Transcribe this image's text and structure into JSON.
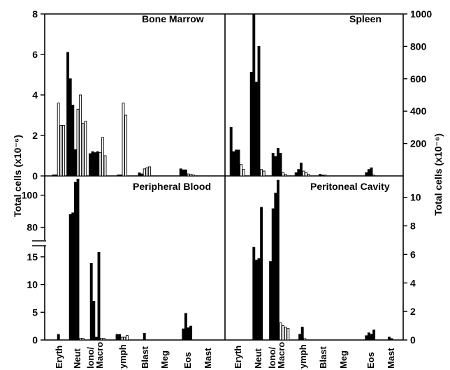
{
  "chart_data": {
    "type": "bar",
    "ylabel_left": "Total cells (x10⁻⁶)",
    "ylabel_right": "Total cells (x10⁻⁶)",
    "categories": [
      "Eryth",
      "Neut",
      "Mono/Macro",
      "Lymph",
      "Blast",
      "Meg",
      "Eos",
      "Mast"
    ],
    "category_labels_left": [
      "Eryth",
      "Neut",
      "lono/\nMacro",
      "ymph",
      "Blast",
      "Meg",
      "Eos",
      "Mast"
    ],
    "category_labels_right": [
      "Eryth",
      "Neut",
      "lono/\nMacro",
      "ymph",
      "Blast",
      "Meg",
      "Eos",
      "Mast"
    ],
    "series_encoding": "filled and open bars per category (groups of animals)",
    "panels": [
      {
        "title": "Bone Marrow",
        "axis": "left",
        "ylim": [
          0,
          8
        ],
        "yticks": [
          "0",
          "2",
          "4",
          "6",
          "8"
        ],
        "bars": {
          "Eryth": {
            "filled": [
              0.05,
              0.05
            ],
            "open": [
              3.6,
              2.5,
              2.5
            ]
          },
          "Neut": {
            "filled": [
              6.1,
              4.8,
              3.5,
              1.3
            ],
            "open": [
              3.3,
              4.0,
              2.6,
              2.7
            ]
          },
          "Mono/Macro": {
            "filled": [
              1.1,
              1.2,
              1.15,
              1.2
            ],
            "open": [
              1.15,
              1.9,
              1.0
            ]
          },
          "Lymph": {
            "filled": [
              0.05,
              0.05
            ],
            "open": [
              3.6,
              3.0
            ]
          },
          "Blast": {
            "filled": [
              0.15,
              0.1
            ],
            "open": [
              0.35,
              0.4,
              0.45
            ]
          },
          "Meg": {
            "filled": [],
            "open": []
          },
          "Eos": {
            "filled": [
              0.35,
              0.3,
              0.3
            ],
            "open": [
              0.1,
              0.08,
              0.05
            ]
          },
          "Mast": {
            "filled": [],
            "open": []
          }
        }
      },
      {
        "title": "Spleen",
        "axis": "right",
        "ylim": [
          0,
          1000
        ],
        "yticks": [
          "200",
          "400",
          "600",
          "800",
          "1000"
        ],
        "bars": {
          "Eryth": {
            "filled": [
              300,
              150,
              160,
              160
            ],
            "open": [
              70,
              40
            ]
          },
          "Neut": {
            "filled": [
              640,
              1000,
              580,
              800
            ],
            "open": [
              40,
              30
            ]
          },
          "Mono/Macro": {
            "filled": [
              140,
              120,
              170,
              140
            ],
            "open": [
              20,
              10
            ]
          },
          "Lymph": {
            "filled": [
              20,
              40,
              80
            ],
            "open": [
              30,
              20,
              10
            ]
          },
          "Blast": {
            "filled": [
              10,
              5
            ],
            "open": [
              5
            ]
          },
          "Meg": {
            "filled": [],
            "open": []
          },
          "Eos": {
            "filled": [
              20,
              40,
              50
            ],
            "open": [
              5
            ]
          },
          "Mast": {
            "filled": [],
            "open": []
          }
        }
      },
      {
        "title": "Peripheral Blood",
        "axis": "left",
        "ylim_lower": [
          0,
          17
        ],
        "ylim_upper": [
          72,
          112
        ],
        "axis_break": true,
        "yticks_lower": [
          "0",
          "5",
          "10",
          "15"
        ],
        "yticks_upper": [
          "80",
          "100"
        ],
        "bars": {
          "Eryth": {
            "filled": [
              1.0
            ],
            "open": []
          },
          "Neut": {
            "filled": [
              88,
              89,
              108,
              110
            ],
            "open": [
              0.3,
              0.3
            ]
          },
          "Mono/Macro": {
            "filled": [
              13.8,
              7.0,
              0.5,
              15.8
            ],
            "open": [
              0.3,
              0.3
            ]
          },
          "Lymph": {
            "filled": [
              1.0,
              1.0
            ],
            "open": [
              0.5,
              0.5,
              0.8
            ]
          },
          "Blast": {
            "filled": [
              1.2
            ],
            "open": []
          },
          "Meg": {
            "filled": [],
            "open": []
          },
          "Eos": {
            "filled": [
              2.0,
              4.8,
              2.2,
              2.5
            ],
            "open": []
          },
          "Mast": {
            "filled": [],
            "open": []
          }
        }
      },
      {
        "title": "Peritoneal Cavity",
        "axis": "right",
        "ylim": [
          0,
          11.5
        ],
        "yticks": [
          "0",
          "2",
          "4",
          "6",
          "8",
          "10"
        ],
        "bars": {
          "Eryth": {
            "filled": [],
            "open": []
          },
          "Neut": {
            "filled": [
              6.5,
              5.6,
              5.7,
              9.3
            ],
            "open": []
          },
          "Mono/Macro": {
            "filled": [
              5.5,
              9.2,
              10.3,
              11.2
            ],
            "open": [
              1.2,
              1.0,
              0.9,
              0.8
            ]
          },
          "Lymph": {
            "filled": [
              0.4,
              0.9
            ],
            "open": [
              0.1
            ]
          },
          "Blast": {
            "filled": [],
            "open": []
          },
          "Meg": {
            "filled": [],
            "open": []
          },
          "Eos": {
            "filled": [
              0.3,
              0.5,
              0.4,
              0.7
            ],
            "open": []
          },
          "Mast": {
            "filled": [
              0.2,
              0.1
            ],
            "open": []
          }
        }
      }
    ]
  }
}
